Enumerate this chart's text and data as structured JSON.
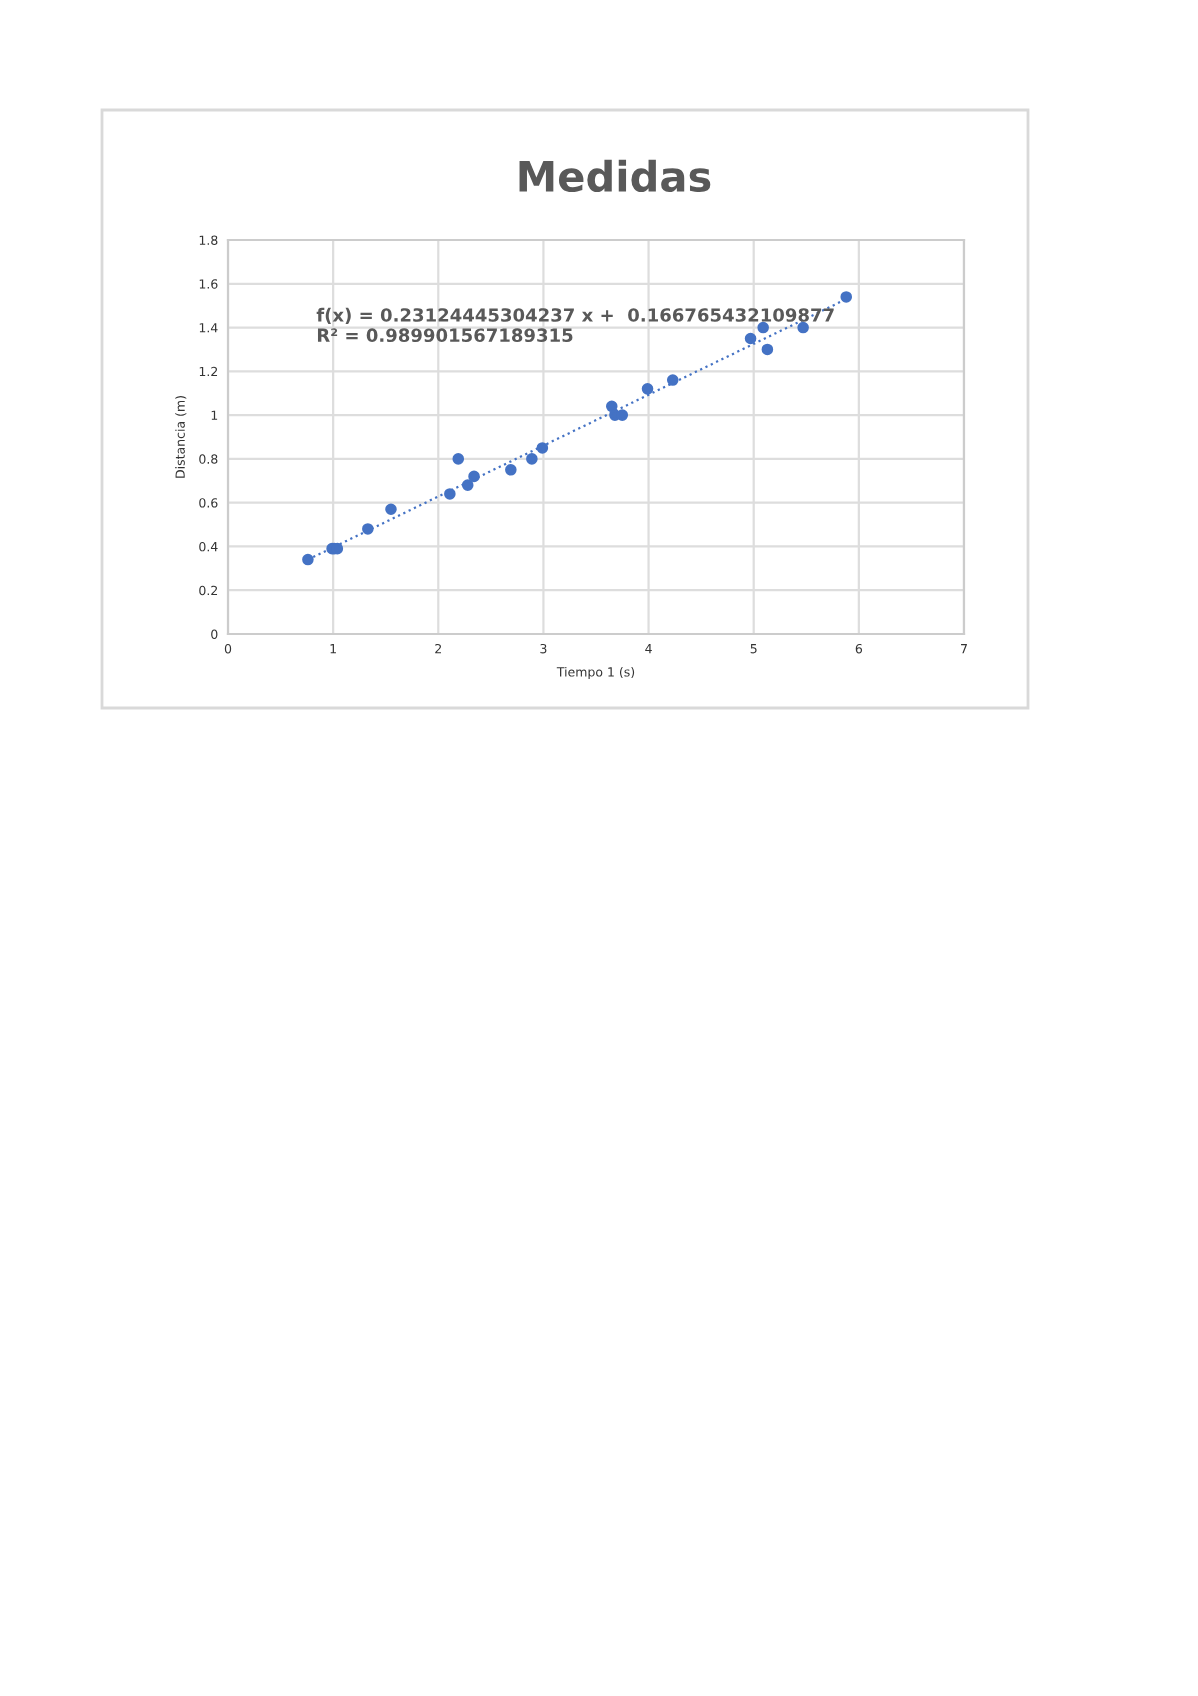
{
  "chart_data": {
    "type": "scatter",
    "title": "Medidas",
    "xlabel": "Tiempo 1 (s)",
    "ylabel": "Distancia (m)",
    "xlim": [
      0,
      7
    ],
    "xticks": [
      0,
      1,
      2,
      3,
      4,
      5,
      6,
      7
    ],
    "ylim": [
      0,
      1.8
    ],
    "yticks": [
      0,
      0.2,
      0.4,
      0.6,
      0.8,
      1,
      1.2,
      1.4,
      1.6,
      1.8
    ],
    "grid": true,
    "series": [
      {
        "marker": "circle",
        "color": "#4472c4",
        "x": [
          0.76,
          0.99,
          1.01,
          1.04,
          1.33,
          1.55,
          2.11,
          2.19,
          2.28,
          2.34,
          2.69,
          2.89,
          2.99,
          3.65,
          3.68,
          3.75,
          3.99,
          4.23,
          4.97,
          5.09,
          5.13,
          5.47,
          5.88
        ],
        "values": [
          0.34,
          0.39,
          0.39,
          0.39,
          0.48,
          0.57,
          0.64,
          0.8,
          0.68,
          0.72,
          0.75,
          0.8,
          0.85,
          1.04,
          1.0,
          1.0,
          1.12,
          1.16,
          1.35,
          1.4,
          1.3,
          1.4,
          1.54
        ]
      },
      {
        "type": "line",
        "color": "#4472c4",
        "line_style": "dotted",
        "x": [
          0.76,
          5.88
        ],
        "values": [
          0.34,
          1.53
        ]
      }
    ],
    "annotations": [
      "f(x) = 0.23124445304237 x +  0.166765432109877\nR² = 0.989901567189315"
    ]
  }
}
